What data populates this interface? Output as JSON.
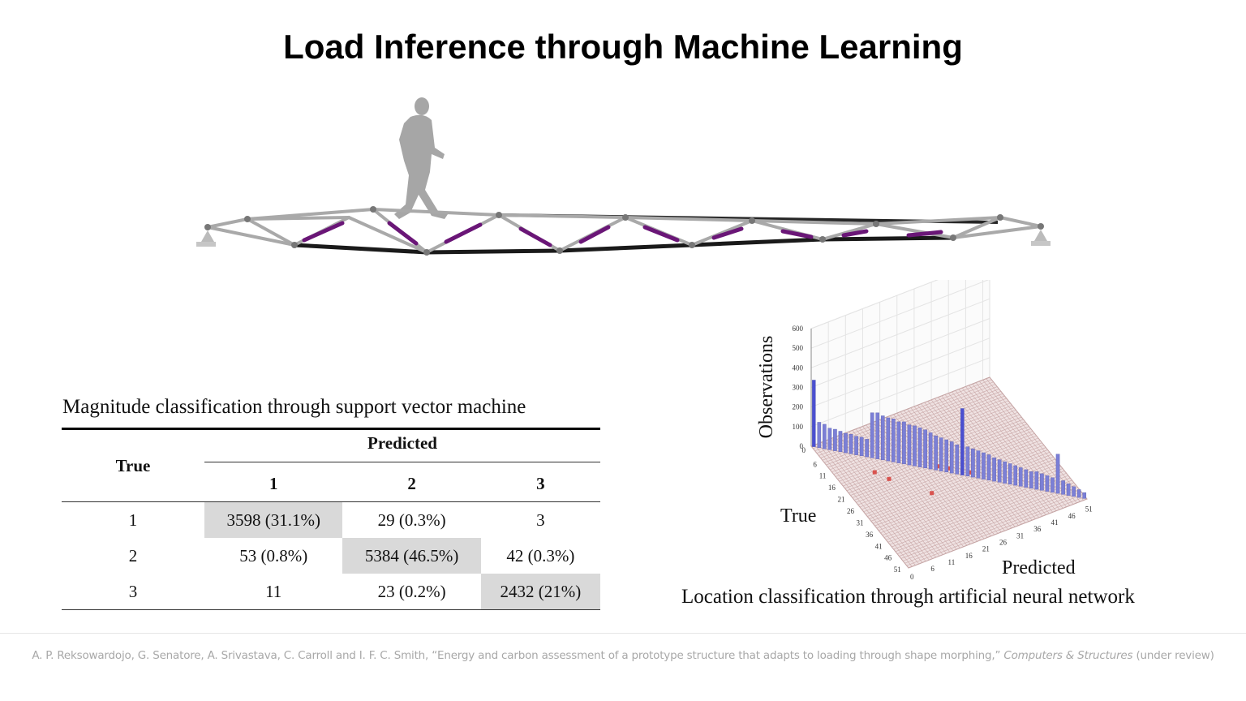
{
  "slide": {
    "title": "Load Inference through Machine Learning"
  },
  "svm": {
    "caption": "Magnitude classification through support vector machine",
    "true_header": "True",
    "predicted_header": "Predicted",
    "columns": [
      "1",
      "2",
      "3"
    ],
    "rows": [
      {
        "label": "1",
        "cells": [
          "3598 (31.1%)",
          "29 (0.3%)",
          "3"
        ]
      },
      {
        "label": "2",
        "cells": [
          "53 (0.8%)",
          "5384 (46.5%)",
          "42 (0.3%)"
        ]
      },
      {
        "label": "3",
        "cells": [
          "11",
          "23 (0.2%)",
          "2432 (21%)"
        ]
      }
    ]
  },
  "ann": {
    "caption": "Location classification through artificial neural network"
  },
  "chart_data": {
    "type": "bar3d",
    "zlabel": "Observations",
    "ylabel": "True",
    "xlabel": "Predicted",
    "z_ticks": [
      "0",
      "100",
      "200",
      "300",
      "400",
      "500",
      "600"
    ],
    "true_ticks": [
      "0",
      "6",
      "11",
      "16",
      "21",
      "26",
      "31",
      "36",
      "41",
      "46",
      "51"
    ],
    "predicted_ticks": [
      "0",
      "6",
      "11",
      "16",
      "21",
      "26",
      "31",
      "36",
      "41",
      "46",
      "51"
    ],
    "zlim": [
      0,
      600
    ],
    "diagonal_values": [
      340,
      130,
      125,
      110,
      110,
      105,
      100,
      100,
      95,
      95,
      90,
      230,
      235,
      225,
      220,
      220,
      210,
      215,
      205,
      205,
      200,
      195,
      185,
      175,
      170,
      165,
      160,
      150,
      340,
      150,
      145,
      140,
      135,
      130,
      120,
      115,
      110,
      105,
      100,
      95,
      90,
      85,
      90,
      85,
      80,
      75,
      200,
      70,
      60,
      50,
      40,
      30
    ],
    "misclassified_points": [
      [
        16,
        9
      ],
      [
        20,
        11
      ],
      [
        30,
        18
      ],
      [
        22,
        24
      ],
      [
        24,
        26
      ],
      [
        28,
        30
      ]
    ],
    "colors": {
      "diagonal_bar": "#7b7fd6",
      "highlight_bar": "#4a4fd0",
      "floor_grid": "#c9a8a8",
      "misclassified": "#d9534f"
    }
  },
  "citation": {
    "text": "A. P. Reksowardojo, G. Senatore, A. Srivastava, C. Carroll and  I. F. C. Smith, “Energy and carbon assessment of a prototype structure that adapts to loading through shape morphing,” ",
    "journal": "Computers & Structures",
    "status": " (under review)"
  },
  "colors": {
    "truss_member": "#a9a9a9",
    "truss_chord": "#1a1a1a",
    "actuator": "#6a1677",
    "figure": "#a6a6a6",
    "diag_cell": "#d9d9d9"
  }
}
